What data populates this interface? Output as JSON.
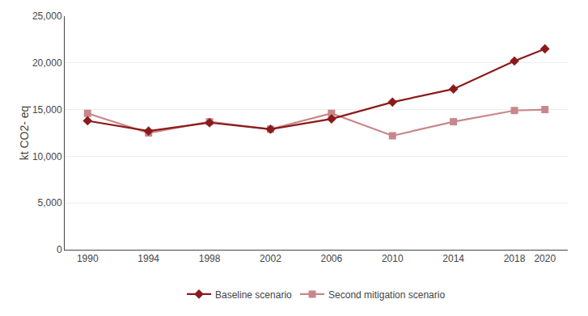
{
  "chart_data": {
    "type": "line",
    "x": [
      1990,
      1994,
      1998,
      2002,
      2006,
      2010,
      2014,
      2018,
      2020
    ],
    "series": [
      {
        "name": "Baseline scenario",
        "color": "#8B1A1A",
        "marker": "diamond",
        "values": [
          13800,
          12700,
          13600,
          12900,
          14000,
          15800,
          17200,
          20200,
          21500
        ]
      },
      {
        "name": "Second mitigation scenario",
        "color": "#C8878A",
        "marker": "square",
        "values": [
          14600,
          12500,
          13700,
          12900,
          14600,
          12200,
          13700,
          14900,
          15000
        ]
      }
    ],
    "ylabel": "kt CO2- eq",
    "xlim": [
      1988.5,
      2021.5
    ],
    "xticks": [
      1990,
      1994,
      1998,
      2002,
      2006,
      2010,
      2014,
      2018,
      2020
    ],
    "ylim": [
      0,
      25000
    ],
    "yticks": [
      0,
      {
        "value": 5000,
        "label": "5,000"
      },
      {
        "value": 10000,
        "label": "10,000"
      },
      {
        "value": 15000,
        "label": "15,000"
      },
      {
        "value": 20000,
        "label": "20,000"
      },
      {
        "value": 25000,
        "label": "25,000"
      }
    ],
    "grid": true,
    "legend": "bottom"
  }
}
